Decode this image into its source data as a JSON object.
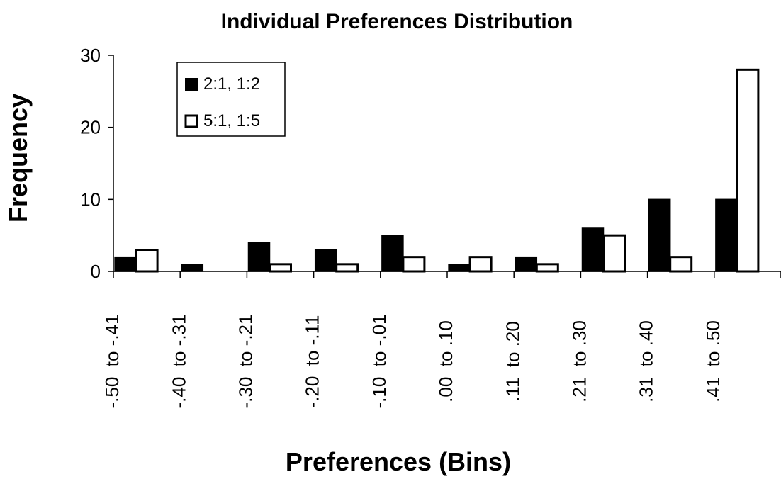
{
  "chart_data": {
    "type": "bar",
    "title": "Individual Preferences Distribution",
    "xlabel": "Preferences  (Bins)",
    "ylabel": "Frequency",
    "ylim": [
      0,
      30
    ],
    "yticks": [
      0,
      10,
      20,
      30
    ],
    "categories": [
      ".50  to -.41",
      ".40  to -.31",
      ".30  to -.21",
      ".20  to -.11",
      ".10  to -.01",
      ".00  to .10",
      ".11  to .20",
      ".21  to .30",
      ".31  to .40",
      ".41  to .50"
    ],
    "category_labels": [
      "-.50  to -.41",
      "-.40  to -.31",
      "-.30  to -.21",
      "-.20  to -.11",
      "-.10  to -.01",
      ".00  to .10",
      ".11  to .20",
      ".21  to .30",
      ".31  to .40",
      ".41  to .50"
    ],
    "series": [
      {
        "name": "2:1, 1:2",
        "color": "#000000",
        "values": [
          2,
          1,
          4,
          3,
          5,
          1,
          2,
          6,
          10,
          10
        ]
      },
      {
        "name": "5:1, 1:5",
        "color": "#ffffff",
        "values": [
          3,
          0,
          1,
          1,
          2,
          2,
          1,
          5,
          2,
          28
        ]
      }
    ],
    "legend_position": "top-left",
    "grid": false
  }
}
